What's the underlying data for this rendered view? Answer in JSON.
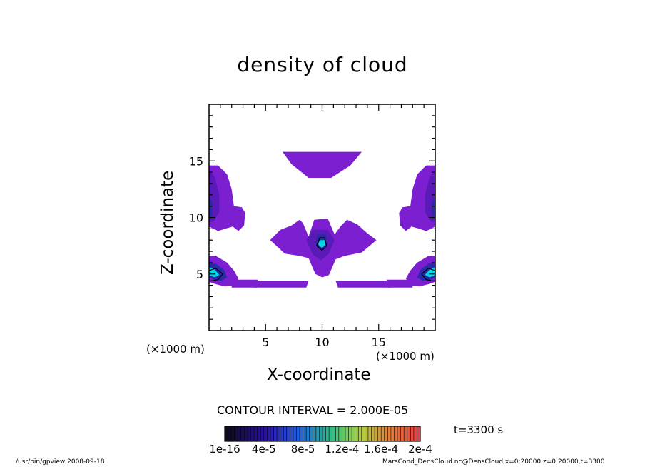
{
  "chart_data": {
    "type": "heatmap",
    "title": "density of cloud",
    "xlabel": "X-coordinate",
    "ylabel": "Z-coordinate",
    "x_unit_label": "(×1000 m)",
    "x_unit_label_right": "(×1000 m)",
    "xlim": [
      0,
      20
    ],
    "ylim": [
      0,
      20
    ],
    "x_ticks": [
      5,
      10,
      15
    ],
    "y_ticks": [
      5,
      10,
      15
    ],
    "contour_interval": "CONTOUR INTERVAL = 2.000E-05",
    "time_label": "t=3300 s",
    "colorbar": {
      "tick_labels": [
        "1e-16",
        "4e-5",
        "8e-5",
        "1.2e-4",
        "1.6e-4",
        "2e-4"
      ],
      "values": [
        1e-16,
        4e-05,
        8e-05,
        0.00012,
        0.00016,
        0.0002
      ]
    }
  },
  "footer": {
    "left": "/usr/bin/gpview  2008-09-18",
    "right": "MarsCond_DensCloud.nc@DensCloud,x=0:20000,z=0:20000,t=3300"
  },
  "colors": {
    "low": "#7b1fd0",
    "mid_low": "#5a1ab8",
    "mid": "#2a2aa8",
    "high": "#00d8e8",
    "peak": "#1a1a30"
  }
}
